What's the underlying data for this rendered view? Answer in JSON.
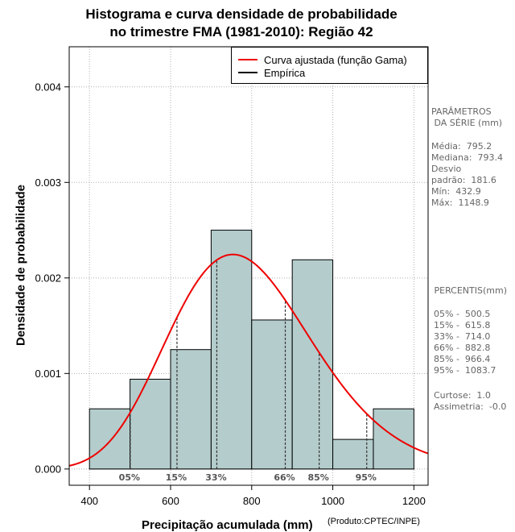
{
  "chart_data": {
    "type": "histogram",
    "title_line1": "Histograma e curva densidade de probabilidade",
    "title_line2": "no trimestre FMA (1981-2010): Região 42",
    "xlabel": "Precipitação acumulada (mm)",
    "ylabel": "Densidade de probabilidade",
    "credit": "(Produto:CPTEC/INPE)",
    "xlim": [
      350,
      1235
    ],
    "ylim": [
      -0.00017,
      0.00442
    ],
    "xticks": [
      400,
      600,
      800,
      1000,
      1200
    ],
    "yticks": [
      0.0,
      0.001,
      0.002,
      0.003,
      0.004
    ],
    "ytick_labels": [
      "0.000",
      "0.001",
      "0.002",
      "0.003",
      "0.004"
    ],
    "bin_width": 100,
    "bins": [
      {
        "start": 400,
        "end": 500,
        "density": 0.00063
      },
      {
        "start": 500,
        "end": 600,
        "density": 0.00094
      },
      {
        "start": 600,
        "end": 700,
        "density": 0.00125
      },
      {
        "start": 700,
        "end": 800,
        "density": 0.0025
      },
      {
        "start": 800,
        "end": 900,
        "density": 0.00156
      },
      {
        "start": 900,
        "end": 1000,
        "density": 0.00219
      },
      {
        "start": 1000,
        "end": 1100,
        "density": 0.00031
      },
      {
        "start": 1100,
        "end": 1200,
        "density": 0.00063
      }
    ],
    "fitted_curve": {
      "distribution": "Gama",
      "shape": 19.16,
      "scale": 41.5,
      "color": "#ee0000"
    },
    "percentile_marks": [
      {
        "label": "05%",
        "value": 500.5
      },
      {
        "label": "15%",
        "value": 615.8
      },
      {
        "label": "33%",
        "value": 714.0
      },
      {
        "label": "66%",
        "value": 882.8
      },
      {
        "label": "85%",
        "value": 966.4
      },
      {
        "label": "95%",
        "value": 1083.7
      }
    ],
    "legend": [
      {
        "label": "Curva ajustada (função Gama)",
        "color": "#ee0000"
      },
      {
        "label": "Empírica",
        "color": "#000000"
      }
    ],
    "bar_color": "#b4cccc",
    "grid": true
  },
  "stats_panel": {
    "header_line1": "PARÂMETROS",
    "header_line2": " DA SÉRIE (mm)",
    "media": "Média:  795.2",
    "mediana": "Mediana:  793.4",
    "desvio1": "Desvio",
    "desvio2": "padrão:  181.6",
    "min": "Mín:  432.9",
    "max": "Máx:  1148.9"
  },
  "percentis_panel": {
    "header": " PERCENTIS(mm)",
    "rows": [
      "05% -  500.5",
      "15% -  615.8",
      "33% -  714.0",
      "66% -  882.8",
      "85% -  966.4",
      "95% -  1083.7"
    ],
    "curtose": "Curtose:  1.0",
    "assimetria": "Assimetria:  -0.0"
  }
}
